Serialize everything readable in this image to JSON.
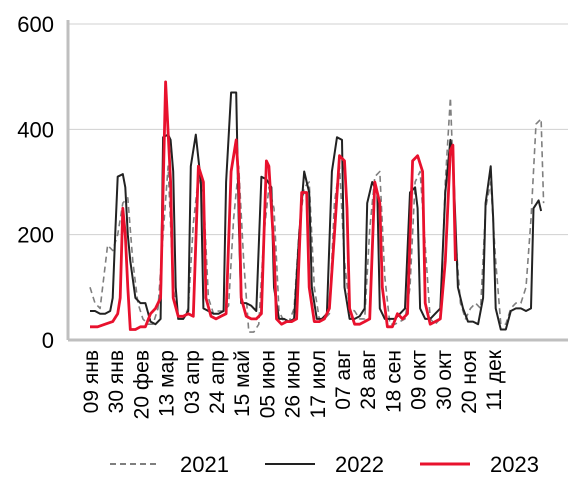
{
  "chart_data": {
    "type": "line",
    "title": "",
    "xlabel": "",
    "ylabel": "",
    "ylim": [
      0,
      600
    ],
    "yticks": [
      0,
      200,
      400,
      600
    ],
    "grid": "horizontal",
    "legend_position": "bottom",
    "x_categories": [
      "09 янв",
      "30 янв",
      "20 фев",
      "13 мар",
      "03 апр",
      "24 апр",
      "15 май",
      "05 июн",
      "26 июн",
      "17 июл",
      "07 авг",
      "28 авг",
      "18 сен",
      "09 окт",
      "30 окт",
      "20 ноя",
      "11 дек"
    ],
    "series": [
      {
        "name": "2021",
        "color": "#7f7f7f",
        "dash": "dashed",
        "points": [
          [
            0,
            100
          ],
          [
            0.2,
            70
          ],
          [
            0.4,
            60
          ],
          [
            0.7,
            180
          ],
          [
            0.9,
            170
          ],
          [
            1.1,
            200
          ],
          [
            1.3,
            260
          ],
          [
            1.5,
            270
          ],
          [
            1.7,
            150
          ],
          [
            1.9,
            70
          ],
          [
            2.1,
            40
          ],
          [
            2.3,
            30
          ],
          [
            2.5,
            30
          ],
          [
            2.7,
            60
          ],
          [
            2.9,
            200
          ],
          [
            3.1,
            330
          ],
          [
            3.3,
            100
          ],
          [
            3.5,
            40
          ],
          [
            3.7,
            40
          ],
          [
            3.9,
            60
          ],
          [
            4.1,
            220
          ],
          [
            4.3,
            310
          ],
          [
            4.5,
            280
          ],
          [
            4.7,
            80
          ],
          [
            4.9,
            50
          ],
          [
            5.1,
            55
          ],
          [
            5.3,
            55
          ],
          [
            5.5,
            65
          ],
          [
            5.7,
            230
          ],
          [
            5.9,
            330
          ],
          [
            6.1,
            150
          ],
          [
            6.3,
            15
          ],
          [
            6.5,
            15
          ],
          [
            6.7,
            30
          ],
          [
            6.9,
            200
          ],
          [
            7.1,
            290
          ],
          [
            7.3,
            250
          ],
          [
            7.5,
            55
          ],
          [
            7.7,
            35
          ],
          [
            7.9,
            35
          ],
          [
            8.1,
            60
          ],
          [
            8.3,
            210
          ],
          [
            8.5,
            290
          ],
          [
            8.7,
            300
          ],
          [
            8.9,
            100
          ],
          [
            9.1,
            40
          ],
          [
            9.3,
            40
          ],
          [
            9.5,
            50
          ],
          [
            9.7,
            260
          ],
          [
            9.9,
            330
          ],
          [
            10.1,
            150
          ],
          [
            10.3,
            60
          ],
          [
            10.5,
            55
          ],
          [
            10.7,
            40
          ],
          [
            10.9,
            40
          ],
          [
            11.1,
            210
          ],
          [
            11.3,
            310
          ],
          [
            11.5,
            320
          ],
          [
            11.7,
            120
          ],
          [
            11.9,
            30
          ],
          [
            12.1,
            30
          ],
          [
            12.3,
            35
          ],
          [
            12.5,
            40
          ],
          [
            12.7,
            100
          ],
          [
            12.9,
            300
          ],
          [
            13.1,
            320
          ],
          [
            13.3,
            180
          ],
          [
            13.5,
            40
          ],
          [
            13.7,
            30
          ],
          [
            13.9,
            40
          ],
          [
            14.1,
            300
          ],
          [
            14.3,
            460
          ],
          [
            14.5,
            200
          ],
          [
            14.7,
            70
          ],
          [
            14.9,
            40
          ],
          [
            15.1,
            60
          ],
          [
            15.3,
            70
          ],
          [
            15.5,
            60
          ],
          [
            15.7,
            250
          ],
          [
            15.9,
            300
          ],
          [
            16.1,
            150
          ],
          [
            16.3,
            30
          ],
          [
            16.5,
            30
          ],
          [
            16.7,
            60
          ],
          [
            16.9,
            70
          ],
          [
            17.1,
            70
          ],
          [
            17.3,
            100
          ],
          [
            17.5,
            230
          ],
          [
            17.7,
            410
          ],
          [
            17.9,
            420
          ],
          [
            18.0,
            260
          ]
        ]
      },
      {
        "name": "2022",
        "color": "#222222",
        "dash": "solid",
        "points": [
          [
            0,
            55
          ],
          [
            0.2,
            55
          ],
          [
            0.4,
            50
          ],
          [
            0.6,
            50
          ],
          [
            0.8,
            55
          ],
          [
            0.9,
            80
          ],
          [
            1.0,
            200
          ],
          [
            1.1,
            310
          ],
          [
            1.3,
            315
          ],
          [
            1.4,
            290
          ],
          [
            1.5,
            200
          ],
          [
            1.6,
            150
          ],
          [
            1.8,
            80
          ],
          [
            2.0,
            70
          ],
          [
            2.2,
            70
          ],
          [
            2.4,
            35
          ],
          [
            2.6,
            30
          ],
          [
            2.8,
            40
          ],
          [
            2.9,
            385
          ],
          [
            3.1,
            390
          ],
          [
            3.2,
            380
          ],
          [
            3.3,
            320
          ],
          [
            3.4,
            100
          ],
          [
            3.5,
            40
          ],
          [
            3.7,
            40
          ],
          [
            3.9,
            55
          ],
          [
            4.0,
            330
          ],
          [
            4.2,
            390
          ],
          [
            4.4,
            300
          ],
          [
            4.5,
            60
          ],
          [
            4.7,
            55
          ],
          [
            4.9,
            50
          ],
          [
            5.1,
            50
          ],
          [
            5.3,
            55
          ],
          [
            5.4,
            300
          ],
          [
            5.6,
            470
          ],
          [
            5.8,
            470
          ],
          [
            5.9,
            230
          ],
          [
            6.0,
            70
          ],
          [
            6.2,
            70
          ],
          [
            6.4,
            65
          ],
          [
            6.6,
            55
          ],
          [
            6.8,
            310
          ],
          [
            7.0,
            305
          ],
          [
            7.2,
            290
          ],
          [
            7.3,
            100
          ],
          [
            7.5,
            40
          ],
          [
            7.7,
            40
          ],
          [
            7.9,
            35
          ],
          [
            8.1,
            40
          ],
          [
            8.3,
            200
          ],
          [
            8.5,
            320
          ],
          [
            8.7,
            280
          ],
          [
            8.8,
            100
          ],
          [
            9.0,
            40
          ],
          [
            9.2,
            40
          ],
          [
            9.4,
            50
          ],
          [
            9.6,
            320
          ],
          [
            9.8,
            385
          ],
          [
            10.0,
            380
          ],
          [
            10.1,
            100
          ],
          [
            10.3,
            40
          ],
          [
            10.5,
            40
          ],
          [
            10.7,
            45
          ],
          [
            10.9,
            60
          ],
          [
            11.0,
            260
          ],
          [
            11.2,
            300
          ],
          [
            11.4,
            280
          ],
          [
            11.5,
            60
          ],
          [
            11.7,
            40
          ],
          [
            11.9,
            40
          ],
          [
            12.1,
            40
          ],
          [
            12.3,
            50
          ],
          [
            12.5,
            60
          ],
          [
            12.7,
            280
          ],
          [
            12.9,
            290
          ],
          [
            13.0,
            250
          ],
          [
            13.1,
            60
          ],
          [
            13.3,
            40
          ],
          [
            13.5,
            40
          ],
          [
            13.7,
            50
          ],
          [
            13.9,
            60
          ],
          [
            14.1,
            280
          ],
          [
            14.3,
            380
          ],
          [
            14.4,
            350
          ],
          [
            14.6,
            100
          ],
          [
            14.8,
            60
          ],
          [
            15.0,
            35
          ],
          [
            15.2,
            35
          ],
          [
            15.4,
            30
          ],
          [
            15.6,
            80
          ],
          [
            15.7,
            260
          ],
          [
            15.9,
            330
          ],
          [
            16.0,
            230
          ],
          [
            16.1,
            60
          ],
          [
            16.3,
            20
          ],
          [
            16.5,
            20
          ],
          [
            16.7,
            55
          ],
          [
            16.9,
            60
          ],
          [
            17.1,
            60
          ],
          [
            17.3,
            55
          ],
          [
            17.5,
            60
          ],
          [
            17.6,
            250
          ],
          [
            17.8,
            265
          ],
          [
            17.9,
            245
          ]
        ]
      },
      {
        "name": "2023",
        "color": "#e8112d",
        "dash": "solid",
        "points": [
          [
            0,
            25
          ],
          [
            0.3,
            25
          ],
          [
            0.6,
            30
          ],
          [
            0.9,
            35
          ],
          [
            1.1,
            50
          ],
          [
            1.2,
            80
          ],
          [
            1.3,
            250
          ],
          [
            1.4,
            200
          ],
          [
            1.5,
            100
          ],
          [
            1.6,
            20
          ],
          [
            1.8,
            20
          ],
          [
            2.0,
            25
          ],
          [
            2.2,
            25
          ],
          [
            2.4,
            50
          ],
          [
            2.6,
            60
          ],
          [
            2.8,
            80
          ],
          [
            3.0,
            490
          ],
          [
            3.2,
            300
          ],
          [
            3.3,
            80
          ],
          [
            3.5,
            45
          ],
          [
            3.7,
            45
          ],
          [
            3.9,
            50
          ],
          [
            4.1,
            45
          ],
          [
            4.3,
            330
          ],
          [
            4.5,
            300
          ],
          [
            4.6,
            80
          ],
          [
            4.8,
            45
          ],
          [
            5.0,
            40
          ],
          [
            5.2,
            45
          ],
          [
            5.4,
            50
          ],
          [
            5.6,
            320
          ],
          [
            5.8,
            380
          ],
          [
            5.9,
            300
          ],
          [
            6.0,
            80
          ],
          [
            6.2,
            45
          ],
          [
            6.4,
            40
          ],
          [
            6.6,
            40
          ],
          [
            6.8,
            50
          ],
          [
            7.0,
            340
          ],
          [
            7.1,
            330
          ],
          [
            7.3,
            170
          ],
          [
            7.4,
            40
          ],
          [
            7.6,
            30
          ],
          [
            7.8,
            35
          ],
          [
            8.0,
            35
          ],
          [
            8.2,
            40
          ],
          [
            8.4,
            280
          ],
          [
            8.6,
            280
          ],
          [
            8.7,
            100
          ],
          [
            8.9,
            35
          ],
          [
            9.1,
            35
          ],
          [
            9.3,
            40
          ],
          [
            9.5,
            60
          ],
          [
            9.7,
            200
          ],
          [
            9.9,
            350
          ],
          [
            10.1,
            340
          ],
          [
            10.2,
            250
          ],
          [
            10.3,
            60
          ],
          [
            10.5,
            30
          ],
          [
            10.7,
            30
          ],
          [
            10.9,
            35
          ],
          [
            11.1,
            40
          ],
          [
            11.3,
            300
          ],
          [
            11.5,
            260
          ],
          [
            11.6,
            100
          ],
          [
            11.8,
            25
          ],
          [
            12.0,
            25
          ],
          [
            12.2,
            50
          ],
          [
            12.4,
            40
          ],
          [
            12.6,
            50
          ],
          [
            12.8,
            340
          ],
          [
            13.0,
            350
          ],
          [
            13.2,
            320
          ],
          [
            13.3,
            70
          ],
          [
            13.5,
            30
          ],
          [
            13.7,
            35
          ],
          [
            13.9,
            40
          ],
          [
            14.1,
            150
          ],
          [
            14.3,
            360
          ],
          [
            14.4,
            370
          ],
          [
            14.5,
            150
          ]
        ]
      }
    ]
  }
}
